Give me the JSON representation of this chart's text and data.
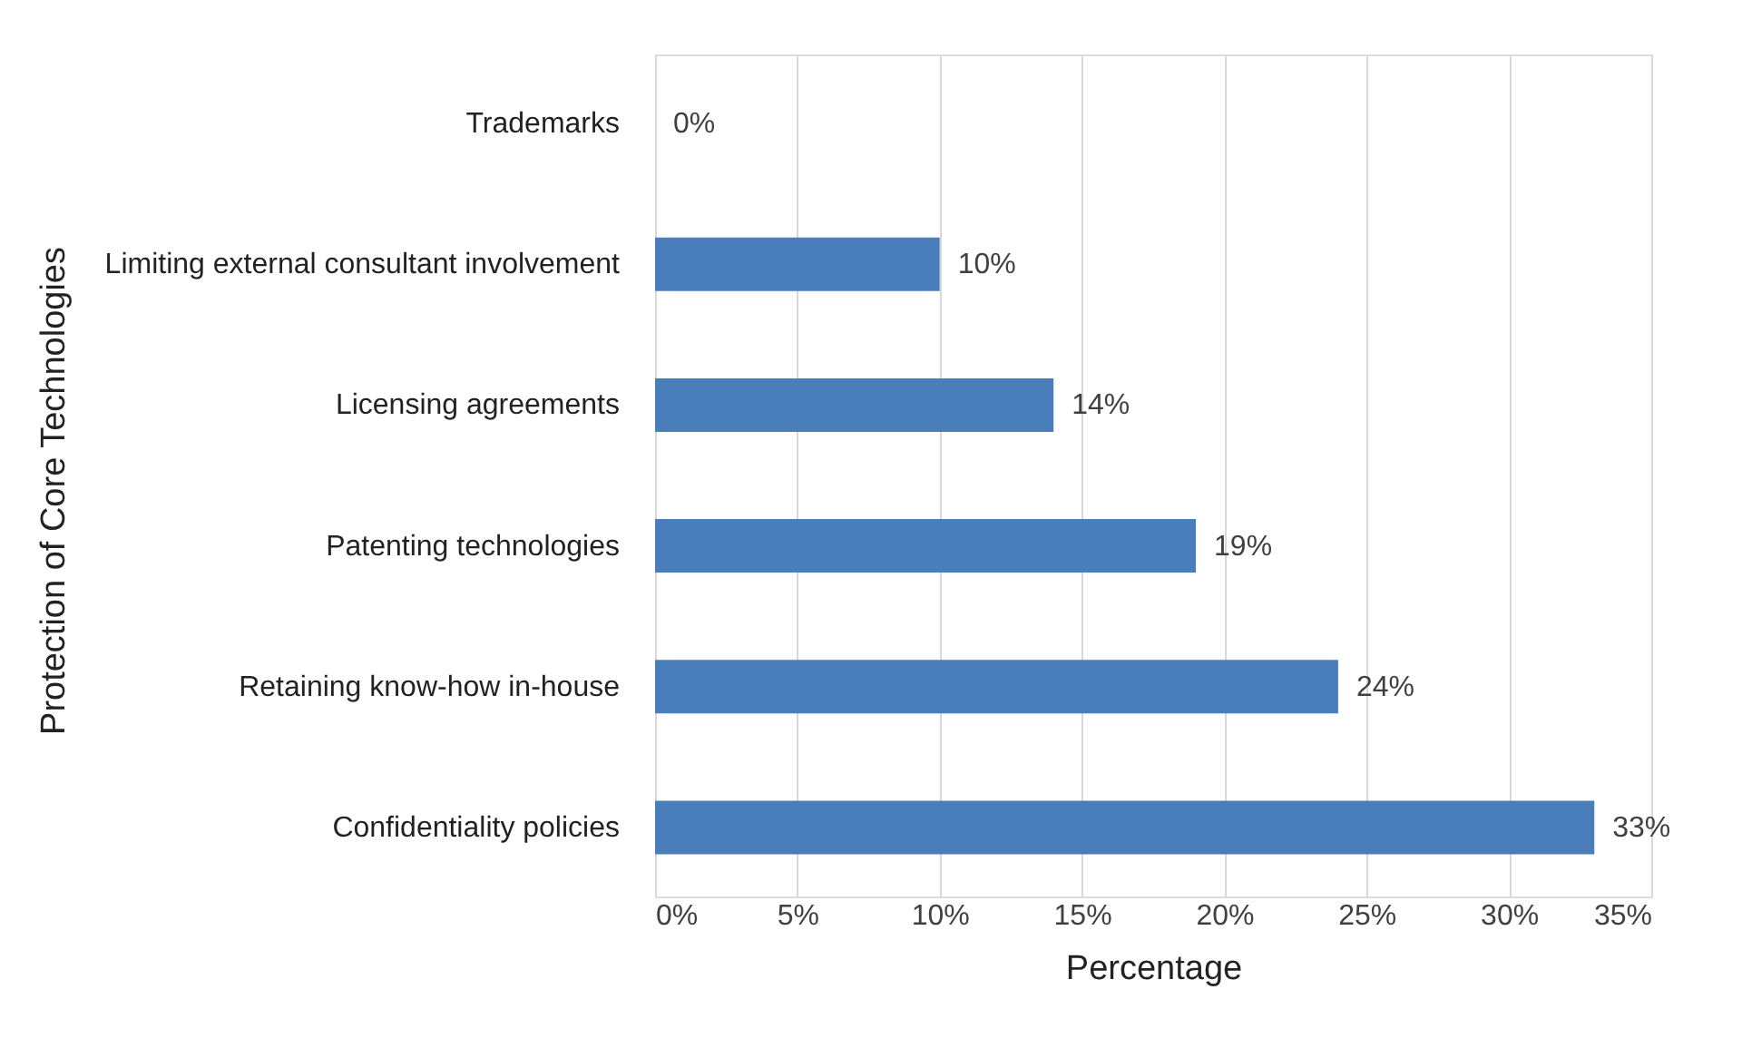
{
  "chart_data": {
    "type": "bar",
    "orientation": "horizontal",
    "xlabel": "Percentage",
    "ylabel": "Protection of Core Technologies",
    "categories": [
      "Trademarks",
      "Limiting external consultant involvement",
      "Licensing agreements",
      "Patenting technologies",
      "Retaining know-how in-house",
      "Confidentiality policies"
    ],
    "values": [
      0,
      10,
      14,
      19,
      24,
      33
    ],
    "value_labels": [
      "0%",
      "10%",
      "14%",
      "19%",
      "24%",
      "33%"
    ],
    "color": "#4a7ebb",
    "xlim": [
      0,
      35
    ],
    "xticks": [
      {
        "value": 0,
        "label": "0%"
      },
      {
        "value": 5,
        "label": "5%"
      },
      {
        "value": 10,
        "label": "10%"
      },
      {
        "value": 15,
        "label": "15%"
      },
      {
        "value": 20,
        "label": "20%"
      },
      {
        "value": 25,
        "label": "25%"
      },
      {
        "value": 30,
        "label": "30%"
      },
      {
        "value": 35,
        "label": "35%"
      }
    ],
    "grid": "x"
  }
}
